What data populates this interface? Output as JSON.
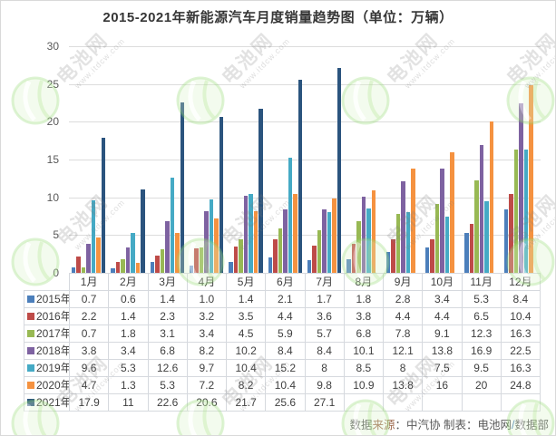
{
  "title": "2015-2021年新能源汽车月度销量趋势图（单位：万辆）",
  "watermark": {
    "brand": "电池网",
    "url": "www.itdcw.com"
  },
  "source_note": {
    "prefix": "数据",
    "highlight": "来源",
    "middle": "：中汽协  制表：电池网",
    "slash": "/",
    "suffix": "数据部"
  },
  "chart_data": {
    "type": "bar",
    "title": "2015-2021年新能源汽车月度销量趋势图",
    "unit": "万辆",
    "categories": [
      "1月",
      "2月",
      "3月",
      "4月",
      "5月",
      "6月",
      "7月",
      "8月",
      "9月",
      "10月",
      "11月",
      "12月"
    ],
    "series": [
      {
        "name": "2015年",
        "color": "#4C7FBB",
        "values": [
          0.7,
          0.6,
          1.4,
          1.0,
          1.4,
          2.1,
          1.7,
          1.8,
          2.8,
          3.4,
          5.3,
          8.4
        ],
        "display": [
          "0.7",
          "0.6",
          "1.4",
          "1.0",
          "1.4",
          "2.1",
          "1.7",
          "1.8",
          "2.8",
          "3.4",
          "5.3",
          "8.4"
        ]
      },
      {
        "name": "2016年",
        "color": "#BE4B48",
        "values": [
          2.2,
          1.4,
          2.3,
          3.2,
          3.5,
          4.4,
          3.6,
          3.8,
          4.4,
          4.4,
          6.5,
          10.4
        ],
        "display": [
          "2.2",
          "1.4",
          "2.3",
          "3.2",
          "3.5",
          "4.4",
          "3.6",
          "3.8",
          "4.4",
          "4.4",
          "6.5",
          "10.4"
        ]
      },
      {
        "name": "2017年",
        "color": "#98B954",
        "values": [
          0.7,
          1.8,
          3.1,
          3.4,
          4.5,
          5.9,
          5.7,
          6.8,
          7.8,
          9.1,
          12.3,
          16.3
        ],
        "display": [
          "0.7",
          "1.8",
          "3.1",
          "3.4",
          "4.5",
          "5.9",
          "5.7",
          "6.8",
          "7.8",
          "9.1",
          "12.3",
          "16.3"
        ]
      },
      {
        "name": "2018年",
        "color": "#7E62A1",
        "values": [
          3.8,
          3.4,
          6.8,
          8.2,
          10.2,
          8.4,
          8.4,
          10.1,
          12.1,
          13.8,
          16.9,
          22.5
        ],
        "display": [
          "3.8",
          "3.4",
          "6.8",
          "8.2",
          "10.2",
          "8.4",
          "8.4",
          "10.1",
          "12.1",
          "13.8",
          "16.9",
          "22.5"
        ]
      },
      {
        "name": "2019年",
        "color": "#45AAC5",
        "values": [
          9.6,
          5.3,
          12.6,
          9.7,
          10.4,
          15.2,
          8,
          8.5,
          8,
          7.5,
          9.5,
          16.3
        ],
        "display": [
          "9.6",
          "5.3",
          "12.6",
          "9.7",
          "10.4",
          "15.2",
          "8",
          "8.5",
          "8",
          "7.5",
          "9.5",
          "16.3"
        ]
      },
      {
        "name": "2020年",
        "color": "#F59240",
        "values": [
          4.7,
          1.3,
          5.3,
          7.2,
          8.2,
          10.4,
          9.8,
          10.9,
          13.8,
          16,
          20,
          24.8
        ],
        "display": [
          "4.7",
          "1.3",
          "5.3",
          "7.2",
          "8.2",
          "10.4",
          "9.8",
          "10.9",
          "13.8",
          "16",
          "20",
          "24.8"
        ]
      },
      {
        "name": "2021年",
        "color": "#2B547E",
        "values": [
          17.9,
          11,
          22.6,
          20.6,
          21.7,
          25.6,
          27.1,
          null,
          null,
          null,
          null,
          null
        ],
        "display": [
          "17.9",
          "11",
          "22.6",
          "20.6",
          "21.7",
          "25.6",
          "27.1",
          "",
          "",
          "",
          "",
          ""
        ]
      }
    ],
    "ylim": [
      0,
      30
    ],
    "yticks": [
      0,
      5,
      10,
      15,
      20,
      25,
      30
    ],
    "grid": true,
    "legend_position": "table-rows"
  }
}
